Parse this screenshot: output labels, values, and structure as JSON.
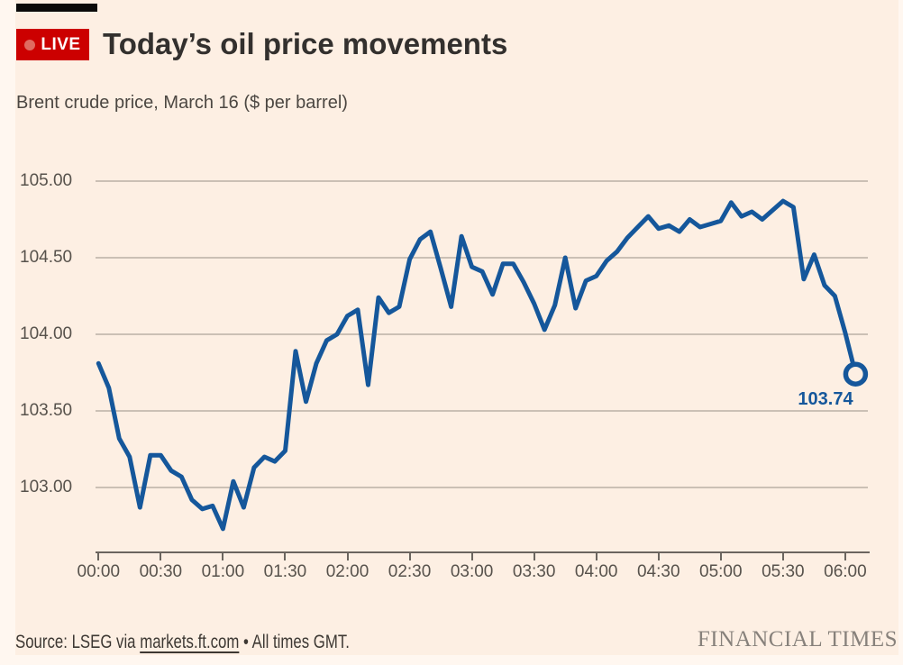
{
  "page": {
    "background": "#FDEFE3",
    "edge_background": "#FFF7F0"
  },
  "header": {
    "live_label": "LIVE",
    "badge_color": "#CC0000",
    "title": "Today’s oil price movements"
  },
  "subtitle": "Brent crude price, March 16 ($ per barrel)",
  "chart_data": {
    "type": "line",
    "title": "Today’s oil price movements",
    "subtitle": "Brent crude price, March 16 ($ per barrel)",
    "grid": "horizontal",
    "legend": "none",
    "ylim": [
      102.7,
      105.0
    ],
    "x_ticks": [
      "00:00",
      "00:30",
      "01:00",
      "01:30",
      "02:00",
      "02:30",
      "03:00",
      "03:30",
      "04:00",
      "04:30",
      "05:00",
      "05:30",
      "06:00"
    ],
    "y_ticks": [
      "105.00",
      "104.50",
      "104.00",
      "103.50",
      "103.00"
    ],
    "last_value_label": "103.74",
    "x": [
      "00:00",
      "00:05",
      "00:10",
      "00:15",
      "00:20",
      "00:25",
      "00:30",
      "00:35",
      "00:40",
      "00:45",
      "00:50",
      "00:55",
      "01:00",
      "01:05",
      "01:10",
      "01:15",
      "01:20",
      "01:25",
      "01:30",
      "01:35",
      "01:40",
      "01:45",
      "01:50",
      "01:55",
      "02:00",
      "02:05",
      "02:10",
      "02:15",
      "02:20",
      "02:25",
      "02:30",
      "02:35",
      "02:40",
      "02:45",
      "02:50",
      "02:55",
      "03:00",
      "03:05",
      "03:10",
      "03:15",
      "03:20",
      "03:25",
      "03:30",
      "03:35",
      "03:40",
      "03:45",
      "03:50",
      "03:55",
      "04:00",
      "04:05",
      "04:10",
      "04:15",
      "04:20",
      "04:25",
      "04:30",
      "04:35",
      "04:40",
      "04:45",
      "04:50",
      "04:55",
      "05:00",
      "05:05",
      "05:10",
      "05:15",
      "05:20",
      "05:25",
      "05:30",
      "05:35",
      "05:40",
      "05:45",
      "05:50",
      "05:55",
      "06:00",
      "06:05"
    ],
    "series": [
      {
        "name": "Brent crude price ($ per barrel)",
        "color": "#15579B",
        "values": [
          103.81,
          103.65,
          103.32,
          103.2,
          102.87,
          103.21,
          103.21,
          103.11,
          103.07,
          102.92,
          102.86,
          102.88,
          102.73,
          103.04,
          102.87,
          103.13,
          103.2,
          103.17,
          103.24,
          103.89,
          103.56,
          103.81,
          103.96,
          104.0,
          104.12,
          104.16,
          103.67,
          104.24,
          104.14,
          104.18,
          104.49,
          104.62,
          104.67,
          104.43,
          104.18,
          104.64,
          104.44,
          104.41,
          104.26,
          104.46,
          104.46,
          104.34,
          104.2,
          104.03,
          104.19,
          104.5,
          104.17,
          104.35,
          104.38,
          104.48,
          104.54,
          104.63,
          104.7,
          104.77,
          104.69,
          104.71,
          104.67,
          104.75,
          104.7,
          104.72,
          104.74,
          104.86,
          104.77,
          104.8,
          104.75,
          104.81,
          104.87,
          104.83,
          104.36,
          104.52,
          104.32,
          104.25,
          104.01,
          103.74
        ]
      }
    ]
  },
  "footer": {
    "source_prefix": "Source: LSEG via ",
    "source_link": "markets.ft.com",
    "source_suffix": " • All times GMT.",
    "brand": "FINANCIAL TIMES"
  }
}
